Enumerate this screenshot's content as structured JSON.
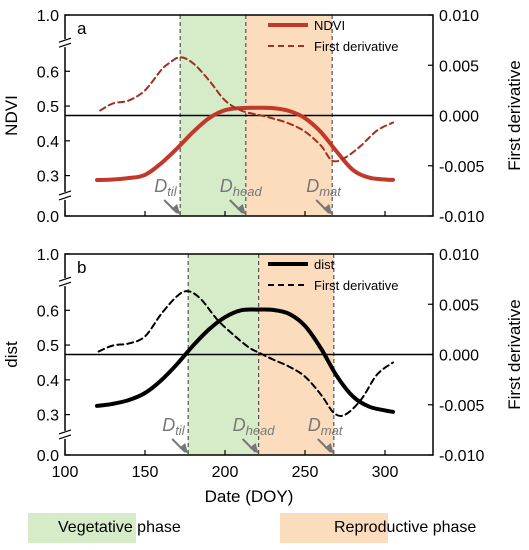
{
  "colors": {
    "ndvi_line": "#c0392b",
    "ndvi_deriv": "#a03020",
    "dist_line": "#000000",
    "vegetative": "#d6ecc8",
    "reproductive": "#fbdcbc",
    "marker": "#777777"
  },
  "chart_data": [
    {
      "type": "line",
      "panel_label": "a",
      "xlim": [
        100,
        330
      ],
      "ylabel": "NDVI",
      "y2label": "First derivative",
      "y_ticks": [
        "1.0",
        "0.6",
        "0.5",
        "0.4",
        "0.3",
        "0.0"
      ],
      "y2_ticks": [
        "0.010",
        "0.005",
        "0.000",
        "-0.005",
        "-0.010"
      ],
      "y_axis_break": true,
      "phases": [
        {
          "name": "Vegetative phase",
          "start": 172,
          "end": 213
        },
        {
          "name": "Reproductive phase",
          "start": 213,
          "end": 267
        }
      ],
      "markers": [
        {
          "label": "D",
          "sub": "til",
          "x": 172
        },
        {
          "label": "D",
          "sub": "head",
          "x": 213
        },
        {
          "label": "D",
          "sub": "mat",
          "x": 267
        }
      ],
      "series": [
        {
          "name": "NDVI",
          "axis": "left",
          "style": "solid",
          "x": [
            120,
            130,
            140,
            150,
            160,
            170,
            180,
            190,
            200,
            210,
            220,
            230,
            240,
            250,
            260,
            270,
            280,
            290,
            300,
            305
          ],
          "y": [
            0.267,
            0.271,
            0.282,
            0.302,
            0.335,
            0.378,
            0.425,
            0.465,
            0.488,
            0.494,
            0.495,
            0.494,
            0.486,
            0.465,
            0.425,
            0.368,
            0.316,
            0.285,
            0.271,
            0.268
          ]
        },
        {
          "name": "First derivative",
          "axis": "right",
          "style": "dashed",
          "x": [
            122,
            130,
            140,
            150,
            160,
            165,
            172,
            180,
            190,
            200,
            210,
            220,
            230,
            240,
            250,
            260,
            267,
            275,
            285,
            295,
            305
          ],
          "y": [
            0.0005,
            0.0012,
            0.0015,
            0.0025,
            0.0045,
            0.0052,
            0.0058,
            0.0052,
            0.0035,
            0.0015,
            0.0005,
            0.0001,
            -0.0003,
            -0.0008,
            -0.0016,
            -0.003,
            -0.0045,
            -0.0042,
            -0.003,
            -0.0015,
            -0.0007
          ]
        }
      ]
    },
    {
      "type": "line",
      "panel_label": "b",
      "xlim": [
        100,
        330
      ],
      "x_ticks": [
        "100",
        "150",
        "200",
        "250",
        "300"
      ],
      "xlabel": "Date (DOY)",
      "ylabel": "dist",
      "y2label": "First derivative",
      "y_ticks": [
        "1.0",
        "0.6",
        "0.5",
        "0.4",
        "0.3",
        "0.0"
      ],
      "y2_ticks": [
        "0.010",
        "0.005",
        "0.000",
        "-0.005",
        "-0.010"
      ],
      "y_axis_break": true,
      "phases": [
        {
          "name": "Vegetative phase",
          "start": 177,
          "end": 221
        },
        {
          "name": "Reproductive phase",
          "start": 221,
          "end": 268
        }
      ],
      "markers": [
        {
          "label": "D",
          "sub": "til",
          "x": 177
        },
        {
          "label": "D",
          "sub": "head",
          "x": 221
        },
        {
          "label": "D",
          "sub": "mat",
          "x": 268
        }
      ],
      "series": [
        {
          "name": "dist",
          "axis": "left",
          "style": "solid",
          "x": [
            120,
            130,
            140,
            150,
            160,
            170,
            180,
            190,
            200,
            210,
            220,
            230,
            240,
            250,
            260,
            270,
            280,
            290,
            300,
            305
          ],
          "y": [
            0.325,
            0.331,
            0.342,
            0.362,
            0.398,
            0.445,
            0.498,
            0.545,
            0.58,
            0.6,
            0.605,
            0.603,
            0.59,
            0.555,
            0.49,
            0.41,
            0.352,
            0.323,
            0.312,
            0.308
          ]
        },
        {
          "name": "First derivative",
          "axis": "right",
          "style": "dashed",
          "x": [
            121,
            130,
            140,
            150,
            160,
            170,
            177,
            185,
            195,
            205,
            215,
            221,
            230,
            240,
            250,
            260,
            268,
            275,
            285,
            295,
            305
          ],
          "y": [
            0.0003,
            0.0009,
            0.0011,
            0.0018,
            0.004,
            0.0058,
            0.0063,
            0.0055,
            0.0035,
            0.002,
            0.0007,
            0.0002,
            -0.0005,
            -0.0012,
            -0.0022,
            -0.004,
            -0.0058,
            -0.006,
            -0.0045,
            -0.002,
            -0.0008
          ]
        }
      ]
    }
  ],
  "legend_bottom": [
    {
      "label": "Vegetative phase"
    },
    {
      "label": "Reproductive phase"
    }
  ]
}
